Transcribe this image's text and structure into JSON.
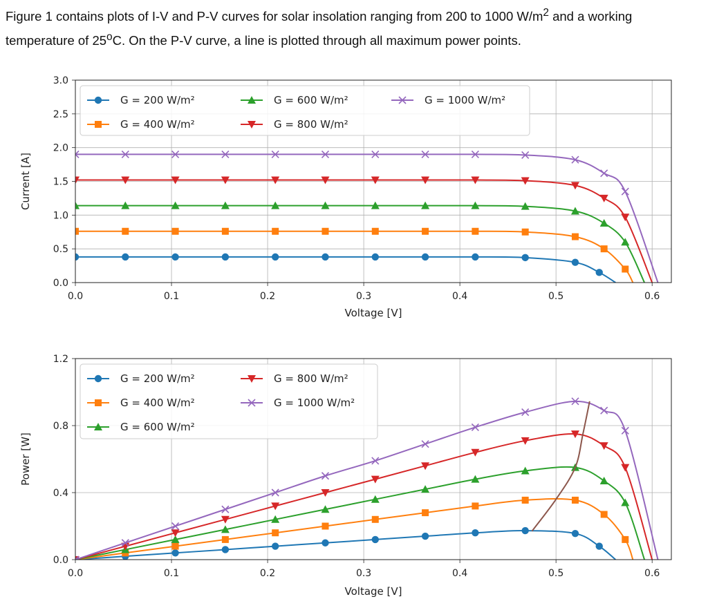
{
  "intro": {
    "part1": "Figure 1 contains plots of I-V and P-V curves for solar insolation ranging from 200 to 1000 W/m",
    "sup1": "2",
    "part2": " and a working temperature of 25",
    "sup2": "o",
    "part3": "C. On the P-V curve, a line is plotted through all maximum power points."
  },
  "colors": {
    "G200": "#1f77b4",
    "G400": "#ff7f0e",
    "G600": "#2ca02c",
    "G800": "#d62728",
    "G1000": "#9467bd",
    "mpp_line": "#8c564b"
  },
  "chart_data": [
    {
      "type": "line",
      "title": "",
      "xlabel": "Voltage [V]",
      "ylabel": "Current [A]",
      "xlim": [
        0,
        0.62
      ],
      "ylim": [
        0,
        3.0
      ],
      "xticks": [
        "0.0",
        "0.1",
        "0.2",
        "0.3",
        "0.4",
        "0.5",
        "0.6"
      ],
      "yticks": [
        "0.0",
        "0.5",
        "1.0",
        "1.5",
        "2.0",
        "2.5",
        "3.0"
      ],
      "grid": true,
      "legend": "upper-left",
      "series": [
        {
          "name": "G = 200 W/m²",
          "marker": "circle",
          "color_key": "G200",
          "points": [
            [
              0.0,
              0.38
            ],
            [
              0.052,
              0.38
            ],
            [
              0.104,
              0.38
            ],
            [
              0.156,
              0.38
            ],
            [
              0.208,
              0.38
            ],
            [
              0.26,
              0.38
            ],
            [
              0.312,
              0.38
            ],
            [
              0.364,
              0.38
            ],
            [
              0.416,
              0.38
            ],
            [
              0.468,
              0.37
            ],
            [
              0.52,
              0.3
            ],
            [
              0.545,
              0.15
            ],
            [
              0.562,
              0.0
            ]
          ]
        },
        {
          "name": "G = 400 W/m²",
          "marker": "square",
          "color_key": "G400",
          "points": [
            [
              0.0,
              0.76
            ],
            [
              0.052,
              0.76
            ],
            [
              0.104,
              0.76
            ],
            [
              0.156,
              0.76
            ],
            [
              0.208,
              0.76
            ],
            [
              0.26,
              0.76
            ],
            [
              0.312,
              0.76
            ],
            [
              0.364,
              0.76
            ],
            [
              0.416,
              0.76
            ],
            [
              0.468,
              0.75
            ],
            [
              0.52,
              0.68
            ],
            [
              0.55,
              0.5
            ],
            [
              0.572,
              0.2
            ],
            [
              0.58,
              0.0
            ]
          ]
        },
        {
          "name": "G = 600 W/m²",
          "marker": "triangle-up",
          "color_key": "G600",
          "points": [
            [
              0.0,
              1.14
            ],
            [
              0.052,
              1.14
            ],
            [
              0.104,
              1.14
            ],
            [
              0.156,
              1.14
            ],
            [
              0.208,
              1.14
            ],
            [
              0.26,
              1.14
            ],
            [
              0.312,
              1.14
            ],
            [
              0.364,
              1.14
            ],
            [
              0.416,
              1.14
            ],
            [
              0.468,
              1.13
            ],
            [
              0.52,
              1.06
            ],
            [
              0.55,
              0.88
            ],
            [
              0.572,
              0.6
            ],
            [
              0.592,
              0.0
            ]
          ]
        },
        {
          "name": "G = 800 W/m²",
          "marker": "triangle-down",
          "color_key": "G800",
          "points": [
            [
              0.0,
              1.52
            ],
            [
              0.052,
              1.52
            ],
            [
              0.104,
              1.52
            ],
            [
              0.156,
              1.52
            ],
            [
              0.208,
              1.52
            ],
            [
              0.26,
              1.52
            ],
            [
              0.312,
              1.52
            ],
            [
              0.364,
              1.52
            ],
            [
              0.416,
              1.52
            ],
            [
              0.468,
              1.51
            ],
            [
              0.52,
              1.44
            ],
            [
              0.55,
              1.25
            ],
            [
              0.572,
              0.97
            ],
            [
              0.6,
              0.0
            ]
          ]
        },
        {
          "name": "G = 1000 W/m²",
          "marker": "x",
          "color_key": "G1000",
          "points": [
            [
              0.0,
              1.9
            ],
            [
              0.052,
              1.9
            ],
            [
              0.104,
              1.9
            ],
            [
              0.156,
              1.9
            ],
            [
              0.208,
              1.9
            ],
            [
              0.26,
              1.9
            ],
            [
              0.312,
              1.9
            ],
            [
              0.364,
              1.9
            ],
            [
              0.416,
              1.9
            ],
            [
              0.468,
              1.89
            ],
            [
              0.52,
              1.82
            ],
            [
              0.55,
              1.62
            ],
            [
              0.572,
              1.35
            ],
            [
              0.606,
              0.0
            ]
          ]
        }
      ]
    },
    {
      "type": "line",
      "title": "",
      "xlabel": "Voltage [V]",
      "ylabel": "Power [W]",
      "xlim": [
        0,
        0.62
      ],
      "ylim": [
        0,
        1.2
      ],
      "xticks": [
        "0.0",
        "0.1",
        "0.2",
        "0.3",
        "0.4",
        "0.5",
        "0.6"
      ],
      "yticks": [
        "0.0",
        "0.4",
        "0.8",
        "1.2"
      ],
      "grid": true,
      "legend": "upper-left",
      "series": [
        {
          "name": "G = 200 W/m²",
          "marker": "circle",
          "color_key": "G200",
          "points": [
            [
              0.0,
              0.0
            ],
            [
              0.052,
              0.02
            ],
            [
              0.104,
              0.04
            ],
            [
              0.156,
              0.06
            ],
            [
              0.208,
              0.08
            ],
            [
              0.26,
              0.1
            ],
            [
              0.312,
              0.12
            ],
            [
              0.364,
              0.14
            ],
            [
              0.416,
              0.16
            ],
            [
              0.468,
              0.173
            ],
            [
              0.52,
              0.156
            ],
            [
              0.545,
              0.08
            ],
            [
              0.562,
              0.0
            ]
          ]
        },
        {
          "name": "G = 400 W/m²",
          "marker": "square",
          "color_key": "G400",
          "points": [
            [
              0.0,
              0.0
            ],
            [
              0.052,
              0.04
            ],
            [
              0.104,
              0.08
            ],
            [
              0.156,
              0.12
            ],
            [
              0.208,
              0.16
            ],
            [
              0.26,
              0.2
            ],
            [
              0.312,
              0.24
            ],
            [
              0.364,
              0.28
            ],
            [
              0.416,
              0.32
            ],
            [
              0.468,
              0.355
            ],
            [
              0.52,
              0.355
            ],
            [
              0.55,
              0.27
            ],
            [
              0.572,
              0.12
            ],
            [
              0.58,
              0.0
            ]
          ]
        },
        {
          "name": "G = 600 W/m²",
          "marker": "triangle-up",
          "color_key": "G600",
          "points": [
            [
              0.0,
              0.0
            ],
            [
              0.052,
              0.06
            ],
            [
              0.104,
              0.12
            ],
            [
              0.156,
              0.18
            ],
            [
              0.208,
              0.24
            ],
            [
              0.26,
              0.3
            ],
            [
              0.312,
              0.36
            ],
            [
              0.364,
              0.42
            ],
            [
              0.416,
              0.48
            ],
            [
              0.468,
              0.53
            ],
            [
              0.52,
              0.55
            ],
            [
              0.55,
              0.47
            ],
            [
              0.572,
              0.34
            ],
            [
              0.592,
              0.0
            ]
          ]
        },
        {
          "name": "G = 800 W/m²",
          "marker": "triangle-down",
          "color_key": "G800",
          "points": [
            [
              0.0,
              0.0
            ],
            [
              0.052,
              0.08
            ],
            [
              0.104,
              0.16
            ],
            [
              0.156,
              0.24
            ],
            [
              0.208,
              0.32
            ],
            [
              0.26,
              0.4
            ],
            [
              0.312,
              0.48
            ],
            [
              0.364,
              0.56
            ],
            [
              0.416,
              0.64
            ],
            [
              0.468,
              0.71
            ],
            [
              0.52,
              0.75
            ],
            [
              0.55,
              0.68
            ],
            [
              0.572,
              0.55
            ],
            [
              0.6,
              0.0
            ]
          ]
        },
        {
          "name": "G = 1000 W/m²",
          "marker": "x",
          "color_key": "G1000",
          "points": [
            [
              0.0,
              0.0
            ],
            [
              0.052,
              0.1
            ],
            [
              0.104,
              0.2
            ],
            [
              0.156,
              0.3
            ],
            [
              0.208,
              0.4
            ],
            [
              0.26,
              0.5
            ],
            [
              0.312,
              0.59
            ],
            [
              0.364,
              0.69
            ],
            [
              0.416,
              0.79
            ],
            [
              0.468,
              0.88
            ],
            [
              0.52,
              0.945
            ],
            [
              0.55,
              0.89
            ],
            [
              0.572,
              0.77
            ],
            [
              0.606,
              0.0
            ]
          ]
        }
      ],
      "mpp_line": {
        "color_key": "mpp_line",
        "points": [
          [
            0.475,
            0.17
          ],
          [
            0.5,
            0.36
          ],
          [
            0.52,
            0.55
          ],
          [
            0.528,
            0.75
          ],
          [
            0.535,
            0.945
          ]
        ]
      }
    }
  ]
}
